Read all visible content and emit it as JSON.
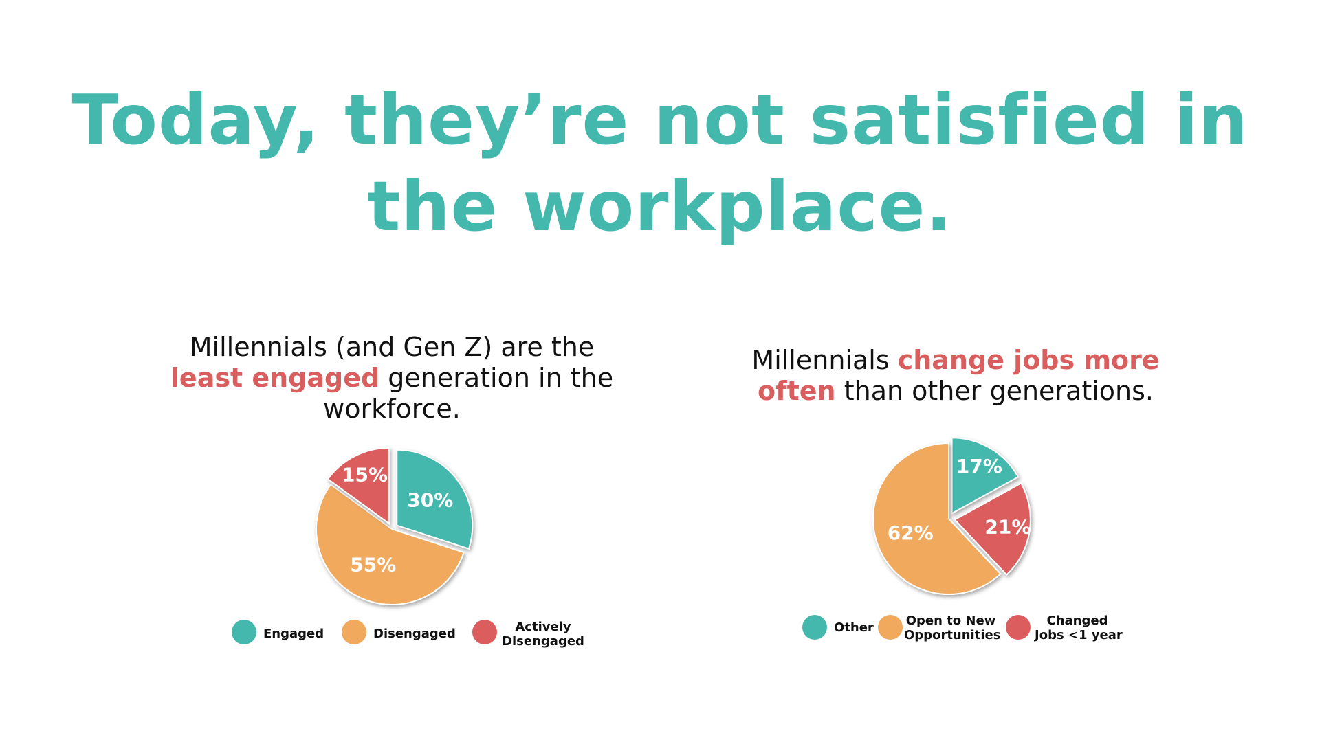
{
  "slide": {
    "title": "Today, they’re not satisfied in the workplace."
  },
  "colors": {
    "teal": "#45b8ae",
    "orange": "#f0a95d",
    "red": "#dc5d5d",
    "title": "#45b8ae",
    "highlight": "#d95f5f"
  },
  "panels": {
    "left": {
      "heading": {
        "part1": "Millennials (and Gen Z) are the ",
        "highlight": "least engaged",
        "part2": " generation in the workforce."
      }
    },
    "right": {
      "heading": {
        "part1": "Millennials ",
        "highlight": "change jobs more often",
        "part2": " than other generations."
      }
    }
  },
  "chart_data": [
    {
      "type": "pie",
      "title": "",
      "slices": [
        {
          "label": "Engaged",
          "value": 30,
          "display": "30%",
          "color": "#45b8ae",
          "exploded": true
        },
        {
          "label": "Disengaged",
          "value": 55,
          "display": "55%",
          "color": "#f0a95d",
          "exploded": false
        },
        {
          "label": "Actively Disengaged",
          "value": 15,
          "display": "15%",
          "color": "#dc5d5d",
          "exploded": true
        }
      ],
      "legend": {
        "placement": "bottom",
        "items": [
          {
            "label": "Engaged",
            "color": "#45b8ae"
          },
          {
            "label": "Disengaged",
            "color": "#f0a95d"
          },
          {
            "label_line1": "Actively",
            "label_line2": "Disengaged",
            "color": "#dc5d5d"
          }
        ]
      }
    },
    {
      "type": "pie",
      "title": "",
      "slices": [
        {
          "label": "Other",
          "value": 17,
          "display": "17%",
          "color": "#45b8ae",
          "exploded": true
        },
        {
          "label": "Changed Jobs <1 year",
          "value": 21,
          "display": "21%",
          "color": "#dc5d5d",
          "exploded": true
        },
        {
          "label": "Open to New Opportunities",
          "value": 62,
          "display": "62%",
          "color": "#f0a95d",
          "exploded": false
        }
      ],
      "legend": {
        "placement": "bottom",
        "items": [
          {
            "label": "Other",
            "color": "#45b8ae"
          },
          {
            "label_line1": "Open to New",
            "label_line2": "Opportunities",
            "color": "#f0a95d"
          },
          {
            "label_line1": "Changed",
            "label_line2": "Jobs <1 year",
            "color": "#dc5d5d"
          }
        ]
      }
    }
  ]
}
